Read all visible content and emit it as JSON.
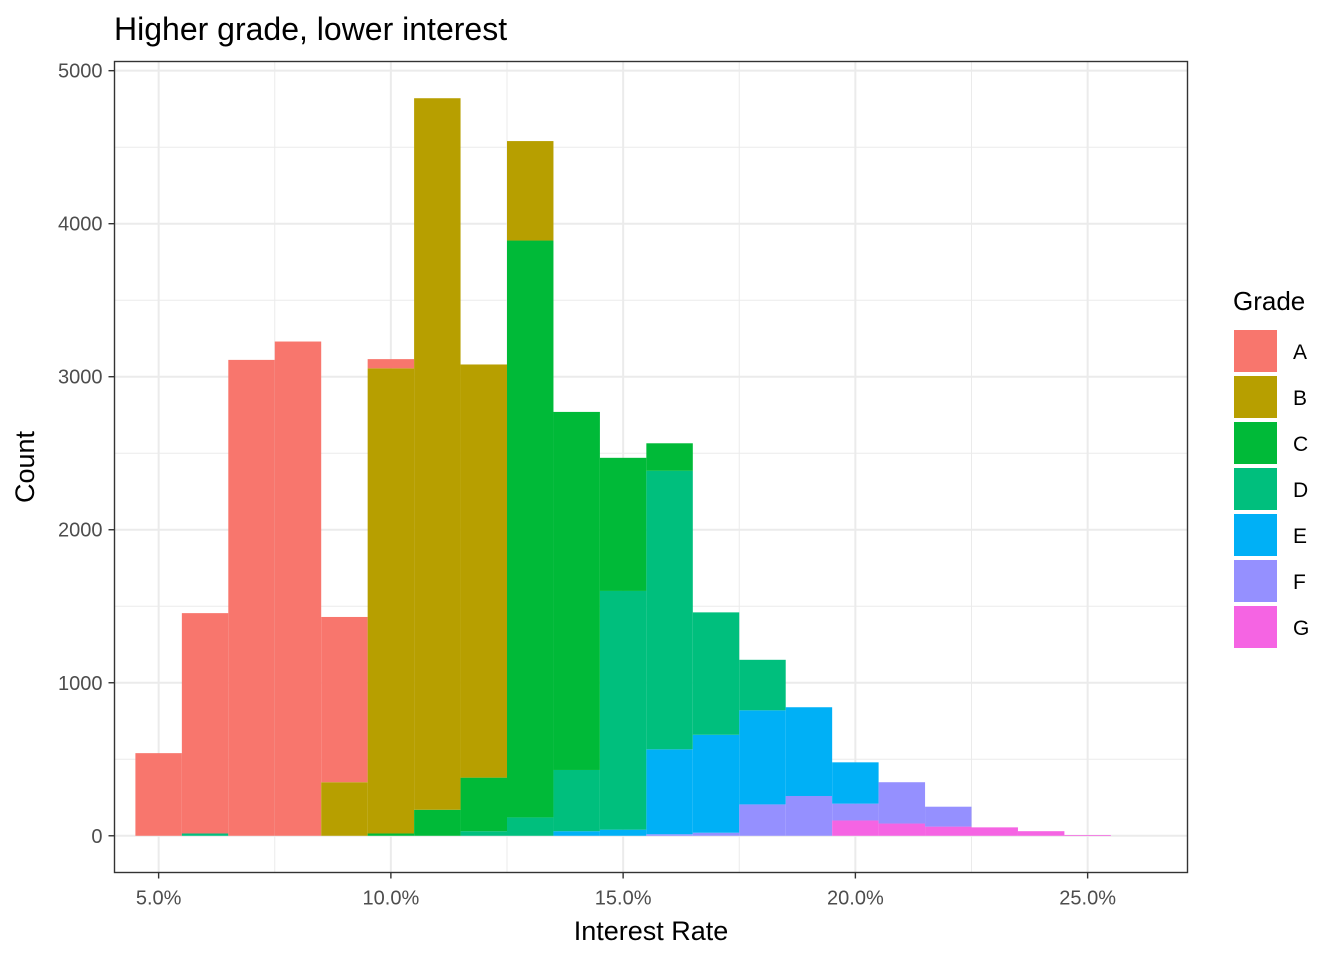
{
  "chart_data": {
    "type": "bar",
    "stacked": true,
    "title": "Higher grade, lower interest",
    "xlabel": "Interest Rate",
    "ylabel": "Count",
    "x_ticks": [
      5,
      10,
      15,
      20,
      25
    ],
    "x_tick_labels": [
      "5.0%",
      "10.0%",
      "15.0%",
      "20.0%",
      "25.0%"
    ],
    "y_ticks": [
      0,
      1000,
      2000,
      3000,
      4000,
      5000
    ],
    "y_tick_labels": [
      "0",
      "1000",
      "2000",
      "3000",
      "4000",
      "5000"
    ],
    "xlim": [
      4.05,
      27.15
    ],
    "ylim": [
      -240,
      5060
    ],
    "grid": true,
    "legend": {
      "title": "Grade",
      "position": "right"
    },
    "bin_width": 1,
    "bins": [
      5,
      6,
      7,
      8,
      9,
      10,
      11,
      12,
      13,
      14,
      15,
      16,
      17,
      18,
      19,
      20,
      21,
      22,
      23,
      24,
      25
    ],
    "series": [
      {
        "name": "A",
        "color": "#F8766D",
        "values": [
          540,
          1440,
          3110,
          3230,
          1080,
          60,
          0,
          0,
          0,
          0,
          0,
          0,
          0,
          0,
          0,
          0,
          0,
          0,
          0,
          0,
          0
        ]
      },
      {
        "name": "B",
        "color": "#B79F00",
        "values": [
          0,
          0,
          0,
          0,
          350,
          3040,
          4650,
          2700,
          650,
          0,
          0,
          0,
          0,
          0,
          0,
          0,
          0,
          0,
          0,
          0,
          0
        ]
      },
      {
        "name": "C",
        "color": "#00BA38",
        "values": [
          0,
          0,
          0,
          0,
          0,
          15,
          170,
          350,
          3770,
          2340,
          870,
          180,
          0,
          0,
          0,
          0,
          0,
          0,
          0,
          0,
          0
        ]
      },
      {
        "name": "D",
        "color": "#00BF7D",
        "values": [
          0,
          15,
          0,
          0,
          0,
          0,
          0,
          30,
          120,
          400,
          1560,
          1820,
          800,
          330,
          0,
          0,
          0,
          0,
          0,
          0,
          0
        ]
      },
      {
        "name": "E",
        "color": "#00B0F6",
        "values": [
          0,
          0,
          0,
          0,
          0,
          0,
          0,
          0,
          0,
          30,
          40,
          555,
          640,
          615,
          580,
          270,
          0,
          0,
          0,
          0,
          0
        ]
      },
      {
        "name": "F",
        "color": "#9590FF",
        "values": [
          0,
          0,
          0,
          0,
          0,
          0,
          0,
          0,
          0,
          0,
          0,
          10,
          20,
          205,
          260,
          110,
          270,
          130,
          0,
          0,
          0
        ]
      },
      {
        "name": "G",
        "color": "#F564E3",
        "values": [
          0,
          0,
          0,
          0,
          0,
          0,
          0,
          0,
          0,
          0,
          0,
          0,
          0,
          0,
          0,
          100,
          80,
          60,
          55,
          30,
          5
        ]
      }
    ]
  }
}
